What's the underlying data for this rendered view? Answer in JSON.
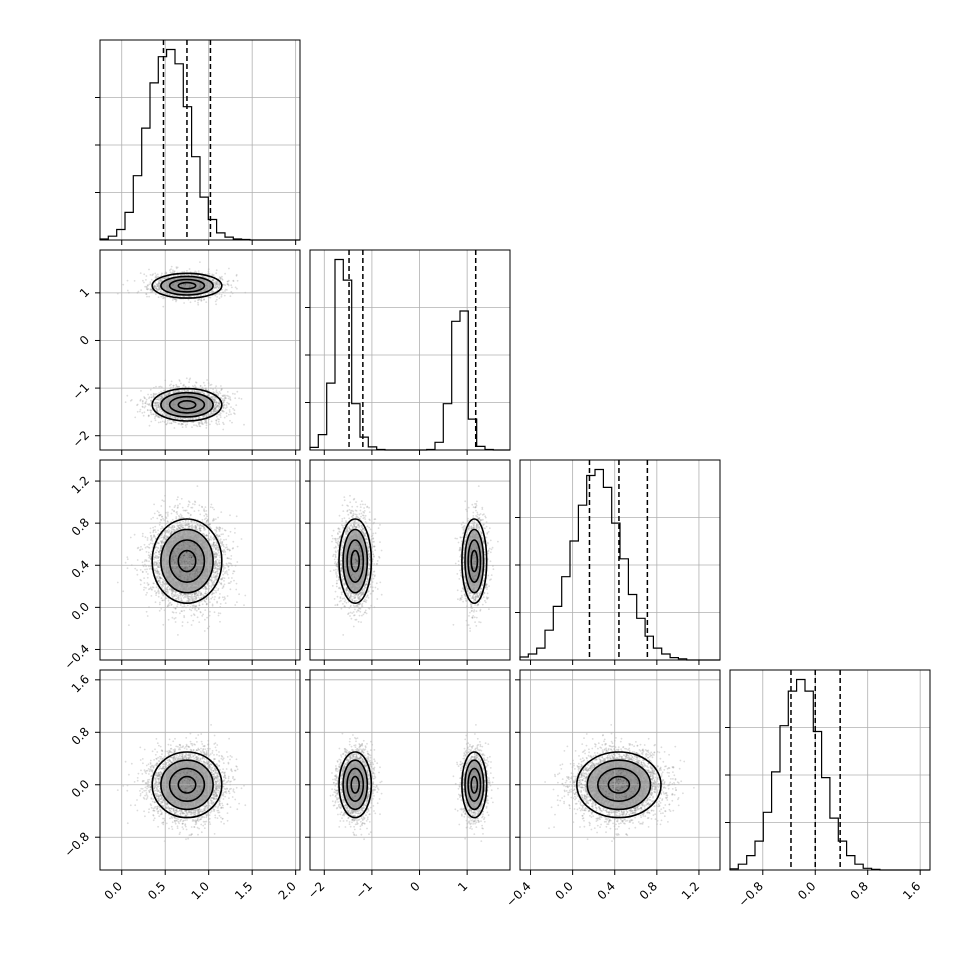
{
  "chart_data": {
    "type": "corner",
    "parameters": [
      {
        "range": [
          -0.25,
          2.05
        ],
        "ticks": [
          0.0,
          0.5,
          1.0,
          1.5,
          2.0
        ],
        "tick_labels": [
          "0.0",
          "0.5",
          "1.0",
          "1.5",
          "2.0"
        ],
        "quantiles": [
          0.48,
          0.75,
          1.02
        ],
        "hist": {
          "bin_start": -0.25,
          "bin_width": 0.0958,
          "counts": [
            0.2,
            0.8,
            2.2,
            5.8,
            13.5,
            23.5,
            33.0,
            38.5,
            40.0,
            37.0,
            28.0,
            17.5,
            9.0,
            4.3,
            1.5,
            0.6,
            0.2,
            0.1,
            0,
            0,
            0,
            0,
            0,
            0
          ]
        }
      },
      {
        "range": [
          -2.3,
          1.9
        ],
        "ticks": [
          -2,
          -1,
          0,
          1
        ],
        "tick_labels": [
          "−2",
          "−1",
          "0",
          "1"
        ],
        "quantiles": [
          -1.48,
          -1.19,
          1.18
        ],
        "hist": {
          "bin_start": -2.3,
          "bin_width": 0.175,
          "counts": [
            0.5,
            3.0,
            13.0,
            37.0,
            33.0,
            9.0,
            2.5,
            0.6,
            0.1,
            0,
            0,
            0,
            0,
            0,
            0.1,
            1.5,
            9.0,
            25.0,
            27.0,
            6.0,
            0.7,
            0.1,
            0,
            0
          ]
        },
        "modes": [
          {
            "center": -1.35,
            "sigma": 0.17,
            "weight": 0.6
          },
          {
            "center": 1.15,
            "sigma": 0.13,
            "weight": 0.4
          }
        ]
      },
      {
        "range": [
          -0.5,
          1.4
        ],
        "ticks": [
          -0.4,
          0.0,
          0.4,
          0.8,
          1.2
        ],
        "tick_labels": [
          "−0.4",
          "0.0",
          "0.4",
          "0.8",
          "1.2"
        ],
        "quantiles": [
          0.16,
          0.44,
          0.71
        ],
        "hist": {
          "bin_start": -0.5,
          "bin_width": 0.0792,
          "counts": [
            0.5,
            1.0,
            2.0,
            5.0,
            9.0,
            14.0,
            20.0,
            26.0,
            31.0,
            32.0,
            29.0,
            23.0,
            17.0,
            11.0,
            7.0,
            4.0,
            2.0,
            1.0,
            0.4,
            0.2,
            0,
            0,
            0,
            0
          ]
        }
      },
      {
        "range": [
          -1.3,
          1.75
        ],
        "ticks": [
          -0.8,
          0.0,
          0.8,
          1.6
        ],
        "tick_labels": [
          "−0.8",
          "0.0",
          "0.8",
          "1.6"
        ],
        "quantiles": [
          -0.37,
          0.0,
          0.38
        ],
        "hist": {
          "bin_start": -1.3,
          "bin_width": 0.127,
          "counts": [
            0.2,
            1.0,
            2.5,
            5.0,
            10.0,
            17.0,
            25.0,
            31.0,
            33.0,
            31.0,
            24.0,
            16.0,
            9.0,
            5.0,
            2.5,
            1.0,
            0.3,
            0.1,
            0,
            0,
            0,
            0,
            0,
            0
          ]
        }
      }
    ],
    "marginals": [
      {
        "center": 0.75,
        "sigma": 0.2
      },
      {
        "center": -1.35,
        "sigma": 0.17
      },
      {
        "center": 0.44,
        "sigma": 0.2
      },
      {
        "center": 0.0,
        "sigma": 0.25
      }
    ],
    "scatter_samples": 9000,
    "grid": true,
    "legend": "none"
  }
}
